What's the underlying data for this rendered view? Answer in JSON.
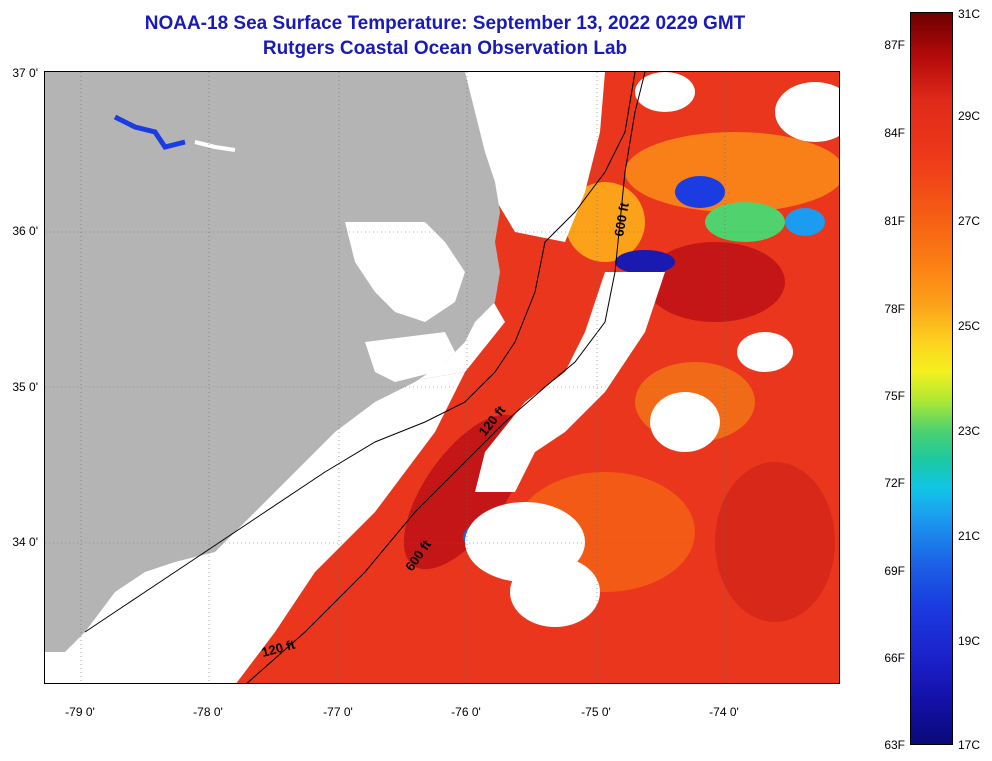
{
  "header": {
    "title": "NOAA-18 Sea Surface Temperature:  September 13, 2022 0229 GMT",
    "subtitle": "Rutgers Coastal Ocean Observation Lab"
  },
  "map": {
    "lat_labels": [
      "37 0'",
      "36 0'",
      "35 0'",
      "34 0'"
    ],
    "lon_labels": [
      "-79 0'",
      "-78 0'",
      "-77 0'",
      "-76 0'",
      "-75 0'",
      "-74 0'"
    ],
    "isobath_labels": [
      "600 ft",
      "120 ft",
      "600 ft",
      "120 ft"
    ],
    "colors": {
      "land": "#b4b4b4",
      "cloud": "#ffffff",
      "warm_sst": "#e9361c",
      "hot_sst": "#c41616",
      "mid_sst": "#f98018",
      "cool_sst": "#2a6ae8",
      "cold_sst": "#1a1ab0"
    }
  },
  "colorbar": {
    "fahrenheit": [
      "87F",
      "84F",
      "81F",
      "78F",
      "75F",
      "72F",
      "69F",
      "66F",
      "63F"
    ],
    "celsius": [
      "31C",
      "29C",
      "27C",
      "25C",
      "23C",
      "21C",
      "19C",
      "17C"
    ]
  }
}
